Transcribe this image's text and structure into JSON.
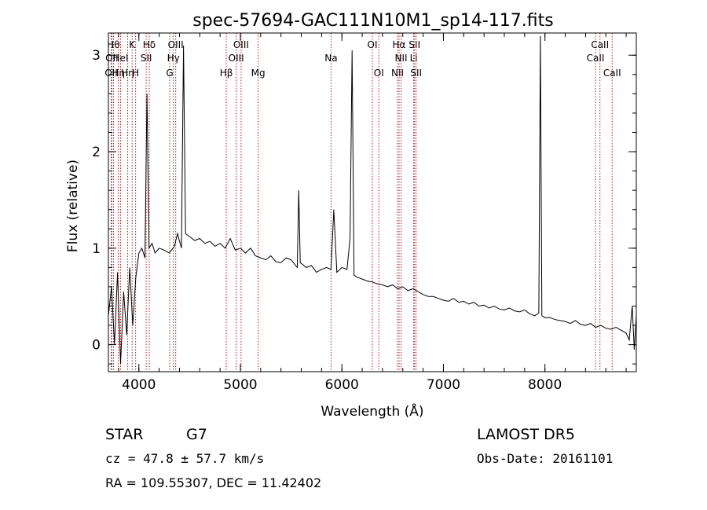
{
  "chart_data": {
    "type": "line",
    "title": "spec-57694-GAC111N10M1_sp14-117.fits",
    "xlabel": "Wavelength (Å)",
    "ylabel": "Flux (relative)",
    "xlim": [
      3700,
      8900
    ],
    "ylim": [
      -0.28,
      3.23
    ],
    "x_ticks": [
      4000,
      5000,
      6000,
      7000,
      8000
    ],
    "y_ticks": [
      0,
      1,
      2,
      3
    ],
    "grid": false,
    "line_color": "#000000",
    "marker_color": "#b22222",
    "series": [
      {
        "x": [
          3700,
          3730,
          3760,
          3790,
          3820,
          3850,
          3880,
          3910,
          3940,
          3970,
          4000,
          4030,
          4060,
          4080,
          4100,
          4130,
          4160,
          4200,
          4250,
          4300,
          4350,
          4380,
          4420,
          4440,
          4460,
          4500,
          4550,
          4600,
          4650,
          4700,
          4750,
          4800,
          4850,
          4900,
          4950,
          5000,
          5050,
          5100,
          5150,
          5200,
          5250,
          5300,
          5350,
          5400,
          5450,
          5500,
          5560,
          5575,
          5590,
          5650,
          5700,
          5750,
          5800,
          5850,
          5893,
          5920,
          5950,
          6000,
          6050,
          6080,
          6100,
          6120,
          6150,
          6200,
          6250,
          6300,
          6350,
          6400,
          6450,
          6500,
          6550,
          6600,
          6650,
          6700,
          6750,
          6800,
          6850,
          6900,
          6950,
          7000,
          7050,
          7100,
          7150,
          7200,
          7250,
          7300,
          7350,
          7400,
          7450,
          7500,
          7550,
          7600,
          7650,
          7700,
          7750,
          7800,
          7850,
          7900,
          7940,
          7955,
          7970,
          8000,
          8050,
          8100,
          8150,
          8200,
          8250,
          8300,
          8350,
          8400,
          8450,
          8500,
          8550,
          8600,
          8650,
          8700,
          8750,
          8800,
          8830,
          8860,
          8880,
          8900
        ],
        "y": [
          0.3,
          0.6,
          0.0,
          0.75,
          -0.2,
          0.55,
          0.1,
          0.8,
          0.2,
          0.7,
          0.95,
          1.0,
          0.9,
          2.6,
          1.0,
          1.05,
          0.95,
          1.0,
          0.98,
          0.95,
          1.02,
          1.15,
          1.0,
          3.1,
          1.15,
          1.12,
          1.08,
          1.1,
          1.05,
          1.07,
          1.02,
          1.05,
          1.0,
          1.1,
          0.98,
          1.0,
          0.95,
          1.0,
          0.92,
          0.9,
          0.88,
          0.92,
          0.86,
          0.85,
          0.9,
          0.88,
          0.8,
          1.6,
          0.85,
          0.8,
          0.82,
          0.75,
          0.78,
          0.8,
          0.78,
          1.4,
          0.75,
          0.8,
          0.78,
          1.1,
          3.05,
          0.72,
          0.7,
          0.68,
          0.66,
          0.65,
          0.63,
          0.62,
          0.6,
          0.62,
          0.58,
          0.6,
          0.56,
          0.58,
          0.55,
          0.52,
          0.5,
          0.5,
          0.48,
          0.46,
          0.45,
          0.48,
          0.44,
          0.45,
          0.42,
          0.44,
          0.4,
          0.41,
          0.38,
          0.4,
          0.37,
          0.36,
          0.38,
          0.35,
          0.34,
          0.36,
          0.32,
          0.3,
          0.33,
          3.2,
          0.3,
          0.28,
          0.28,
          0.26,
          0.25,
          0.24,
          0.22,
          0.25,
          0.21,
          0.2,
          0.22,
          0.18,
          0.2,
          0.17,
          0.16,
          0.18,
          0.15,
          0.12,
          0.05,
          0.4,
          -0.05,
          0.3
        ]
      }
    ],
    "markers": [
      {
        "x": 3750,
        "label": "Hθ",
        "row": 1
      },
      {
        "x": 3734,
        "label": "OII",
        "row": 2
      },
      {
        "x": 3727,
        "label": "OII",
        "row": 3
      },
      {
        "x": 3798,
        "label": "Hη",
        "row": 3
      },
      {
        "x": 3820,
        "label": "HeI",
        "row": 2
      },
      {
        "x": 3889,
        "label": "Hη",
        "row": 3
      },
      {
        "x": 3934,
        "label": "K",
        "row": 1
      },
      {
        "x": 3968,
        "label": "H",
        "row": 3
      },
      {
        "x": 4072,
        "label": "SII",
        "row": 2
      },
      {
        "x": 4102,
        "label": "Hδ",
        "row": 1
      },
      {
        "x": 4304,
        "label": "G",
        "row": 3
      },
      {
        "x": 4340,
        "label": "Hγ",
        "row": 2
      },
      {
        "x": 4363,
        "label": "OIII",
        "row": 1
      },
      {
        "x": 4861,
        "label": "Hβ",
        "row": 3
      },
      {
        "x": 4959,
        "label": "OIII",
        "row": 2
      },
      {
        "x": 5007,
        "label": "OIII",
        "row": 1
      },
      {
        "x": 5175,
        "label": "Mg",
        "row": 3
      },
      {
        "x": 5893,
        "label": "Na",
        "row": 2
      },
      {
        "x": 6300,
        "label": "OI",
        "row": 1
      },
      {
        "x": 6364,
        "label": "OI",
        "row": 3
      },
      {
        "x": 6548,
        "label": "NII",
        "row": 3
      },
      {
        "x": 6563,
        "label": "Hα",
        "row": 1
      },
      {
        "x": 6583,
        "label": "NII",
        "row": 2
      },
      {
        "x": 6707,
        "label": "Li",
        "row": 2
      },
      {
        "x": 6716,
        "label": "SII",
        "row": 1
      },
      {
        "x": 6731,
        "label": "SII",
        "row": 3
      },
      {
        "x": 8498,
        "label": "CaII",
        "row": 2
      },
      {
        "x": 8542,
        "label": "CaII",
        "row": 1
      },
      {
        "x": 8662,
        "label": "CaII",
        "row": 3
      }
    ]
  },
  "info": {
    "class_label": "STAR",
    "subclass": "G7",
    "cz": "cz = 47.8 ± 57.7 km/s",
    "radec": "RA = 109.55307, DEC =  11.42402",
    "survey": "LAMOST DR5",
    "obsdate": "Obs-Date: 20161101"
  }
}
